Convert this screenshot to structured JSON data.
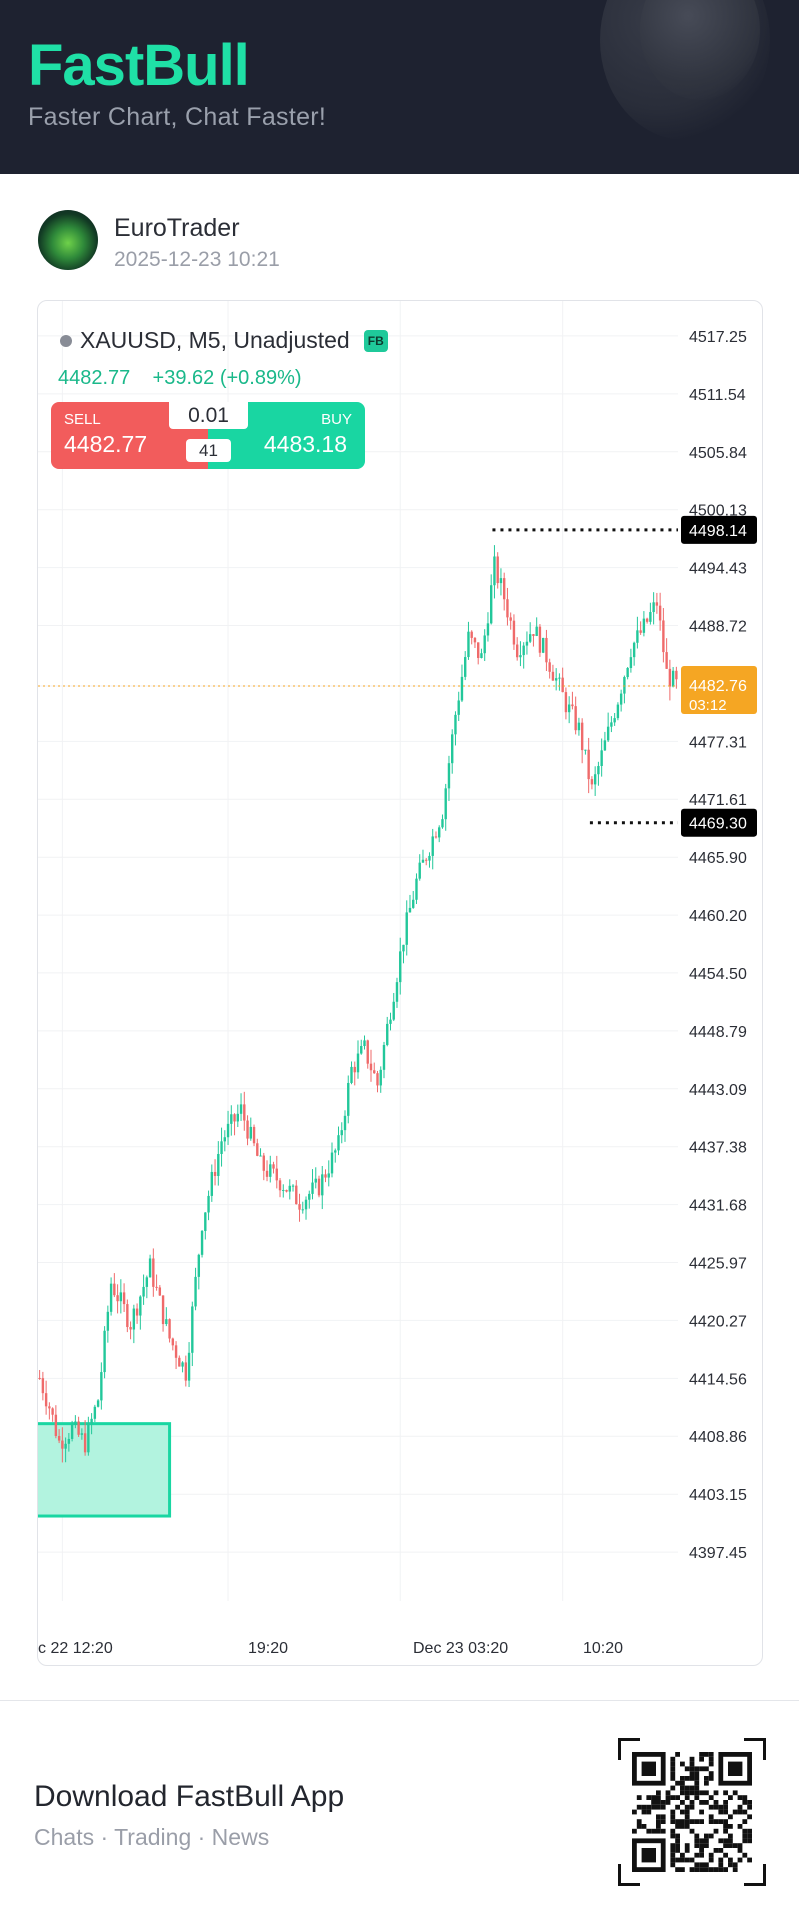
{
  "header": {
    "brand": "FastBull",
    "tagline": "Faster Chart, Chat Faster!"
  },
  "post": {
    "author": "EuroTrader",
    "timestamp": "2025-12-23 10:21"
  },
  "ticker": {
    "symbol": "XAUUSD, M5, Unadjusted",
    "badge": "FB",
    "last": "4482.77",
    "change": "+39.62 (+0.89%)",
    "sell_label": "SELL",
    "sell_price": "4482.77",
    "buy_label": "BUY",
    "buy_price": "4483.18",
    "lot": "0.01",
    "spread": "41"
  },
  "colors": {
    "up": "#22c79a",
    "down": "#ef6a6a",
    "brand": "#1fe0a6",
    "current": "#f5a623"
  },
  "chart_data": {
    "type": "candlestick",
    "y_ticks": [
      "4517.25",
      "4511.54",
      "4505.84",
      "4500.13",
      "4494.43",
      "4488.72",
      "4482.76",
      "4477.31",
      "4471.61",
      "4465.90",
      "4460.20",
      "4454.50",
      "4448.79",
      "4443.09",
      "4437.38",
      "4431.68",
      "4425.97",
      "4420.27",
      "4414.56",
      "4408.86",
      "4403.15",
      "4397.45"
    ],
    "x_ticks": [
      "c 22 12:20",
      "19:20",
      "Dec 23 03:20",
      "10:20"
    ],
    "ylim": [
      4394.6,
      4520.1
    ],
    "current_price": "4482.76",
    "countdown": "03:12",
    "high_marker": "4498.14",
    "low_marker": "4469.30",
    "grid": true,
    "path": [
      [
        0,
        4414.6
      ],
      [
        3,
        4411.8
      ],
      [
        6,
        4408.3
      ],
      [
        10,
        4409.6
      ],
      [
        14,
        4408.2
      ],
      [
        18,
        4412.5
      ],
      [
        22,
        4424.0
      ],
      [
        28,
        4420.0
      ],
      [
        34,
        4425.5
      ],
      [
        40,
        4418.5
      ],
      [
        45,
        4415.2
      ],
      [
        50,
        4430.0
      ],
      [
        56,
        4438.0
      ],
      [
        62,
        4441.0
      ],
      [
        68,
        4435.5
      ],
      [
        74,
        4434.0
      ],
      [
        80,
        4432.0
      ],
      [
        86,
        4433.5
      ],
      [
        92,
        4437.5
      ],
      [
        96,
        4445.0
      ],
      [
        100,
        4447.0
      ],
      [
        104,
        4443.5
      ],
      [
        108,
        4451.0
      ],
      [
        112,
        4458.0
      ],
      [
        116,
        4463.5
      ],
      [
        120,
        4467.0
      ],
      [
        124,
        4470.5
      ],
      [
        128,
        4480.0
      ],
      [
        132,
        4487.5
      ],
      [
        136,
        4485.5
      ],
      [
        140,
        4494.5
      ],
      [
        143,
        4491.5
      ],
      [
        147,
        4486.5
      ],
      [
        152,
        4488.5
      ],
      [
        157,
        4485.0
      ],
      [
        162,
        4481.0
      ],
      [
        166,
        4478.5
      ],
      [
        170,
        4472.5
      ],
      [
        174,
        4477.0
      ],
      [
        178,
        4481.5
      ],
      [
        182,
        4486.5
      ],
      [
        186,
        4488.5
      ],
      [
        190,
        4491.0
      ],
      [
        193,
        4484.0
      ],
      [
        196,
        4482.8
      ]
    ],
    "highlight_zone": {
      "from": 4401.0,
      "to": 4410.1,
      "x_from": 0,
      "x_to": 40
    }
  },
  "footer": {
    "title": "Download FastBull App",
    "subtitle": "Chats · Trading · News"
  }
}
